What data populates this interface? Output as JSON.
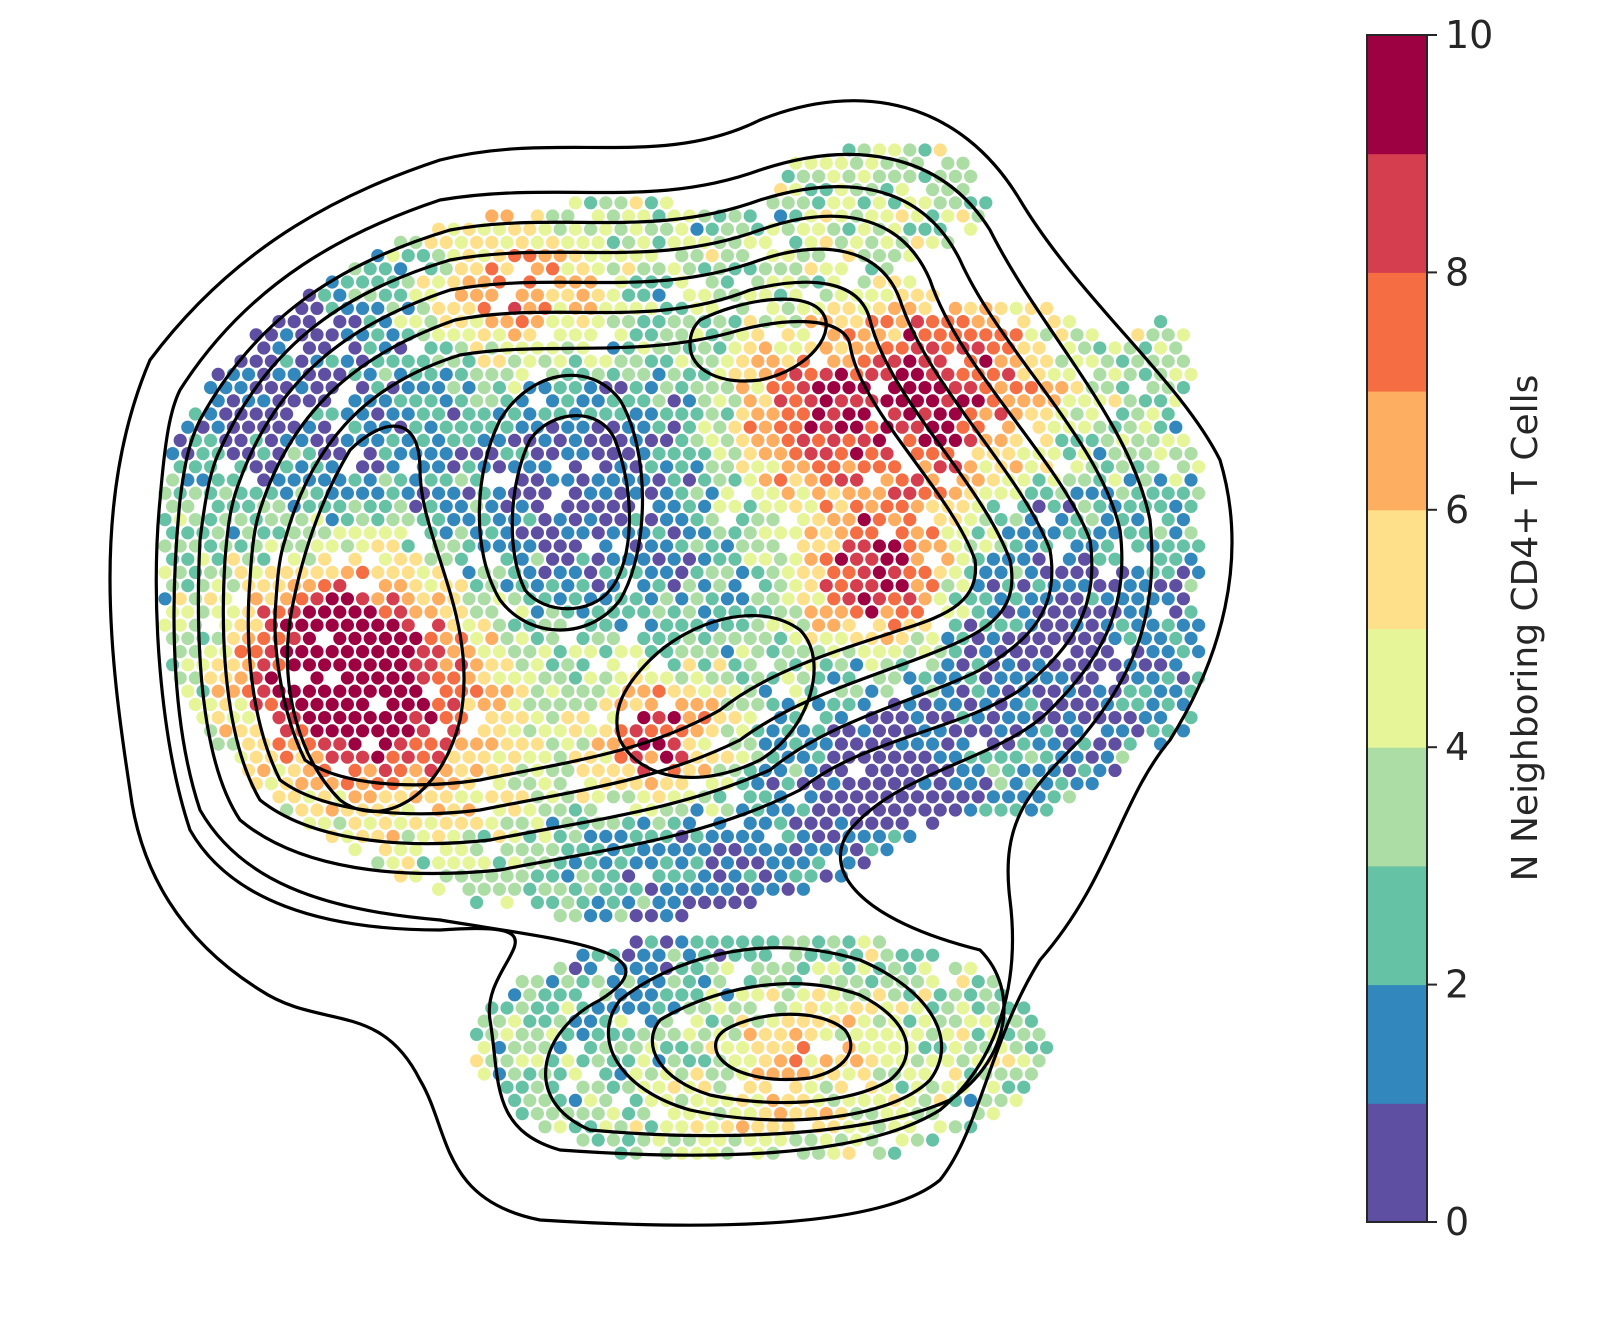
{
  "chart_data": {
    "type": "scatter",
    "description_free": true,
    "colorbar": {
      "label": "N Neighboring CD4+ T Cells",
      "range": [
        0,
        10
      ],
      "ticks": [
        0,
        2,
        4,
        6,
        8,
        10
      ],
      "colors": [
        "#5e4fa2",
        "#3288bd",
        "#66c2a5",
        "#abdda4",
        "#e6f598",
        "#fee08b",
        "#fdae61",
        "#f46d43",
        "#d53e4f",
        "#9e0142"
      ]
    },
    "axes_visible": false,
    "contours": 9
  }
}
